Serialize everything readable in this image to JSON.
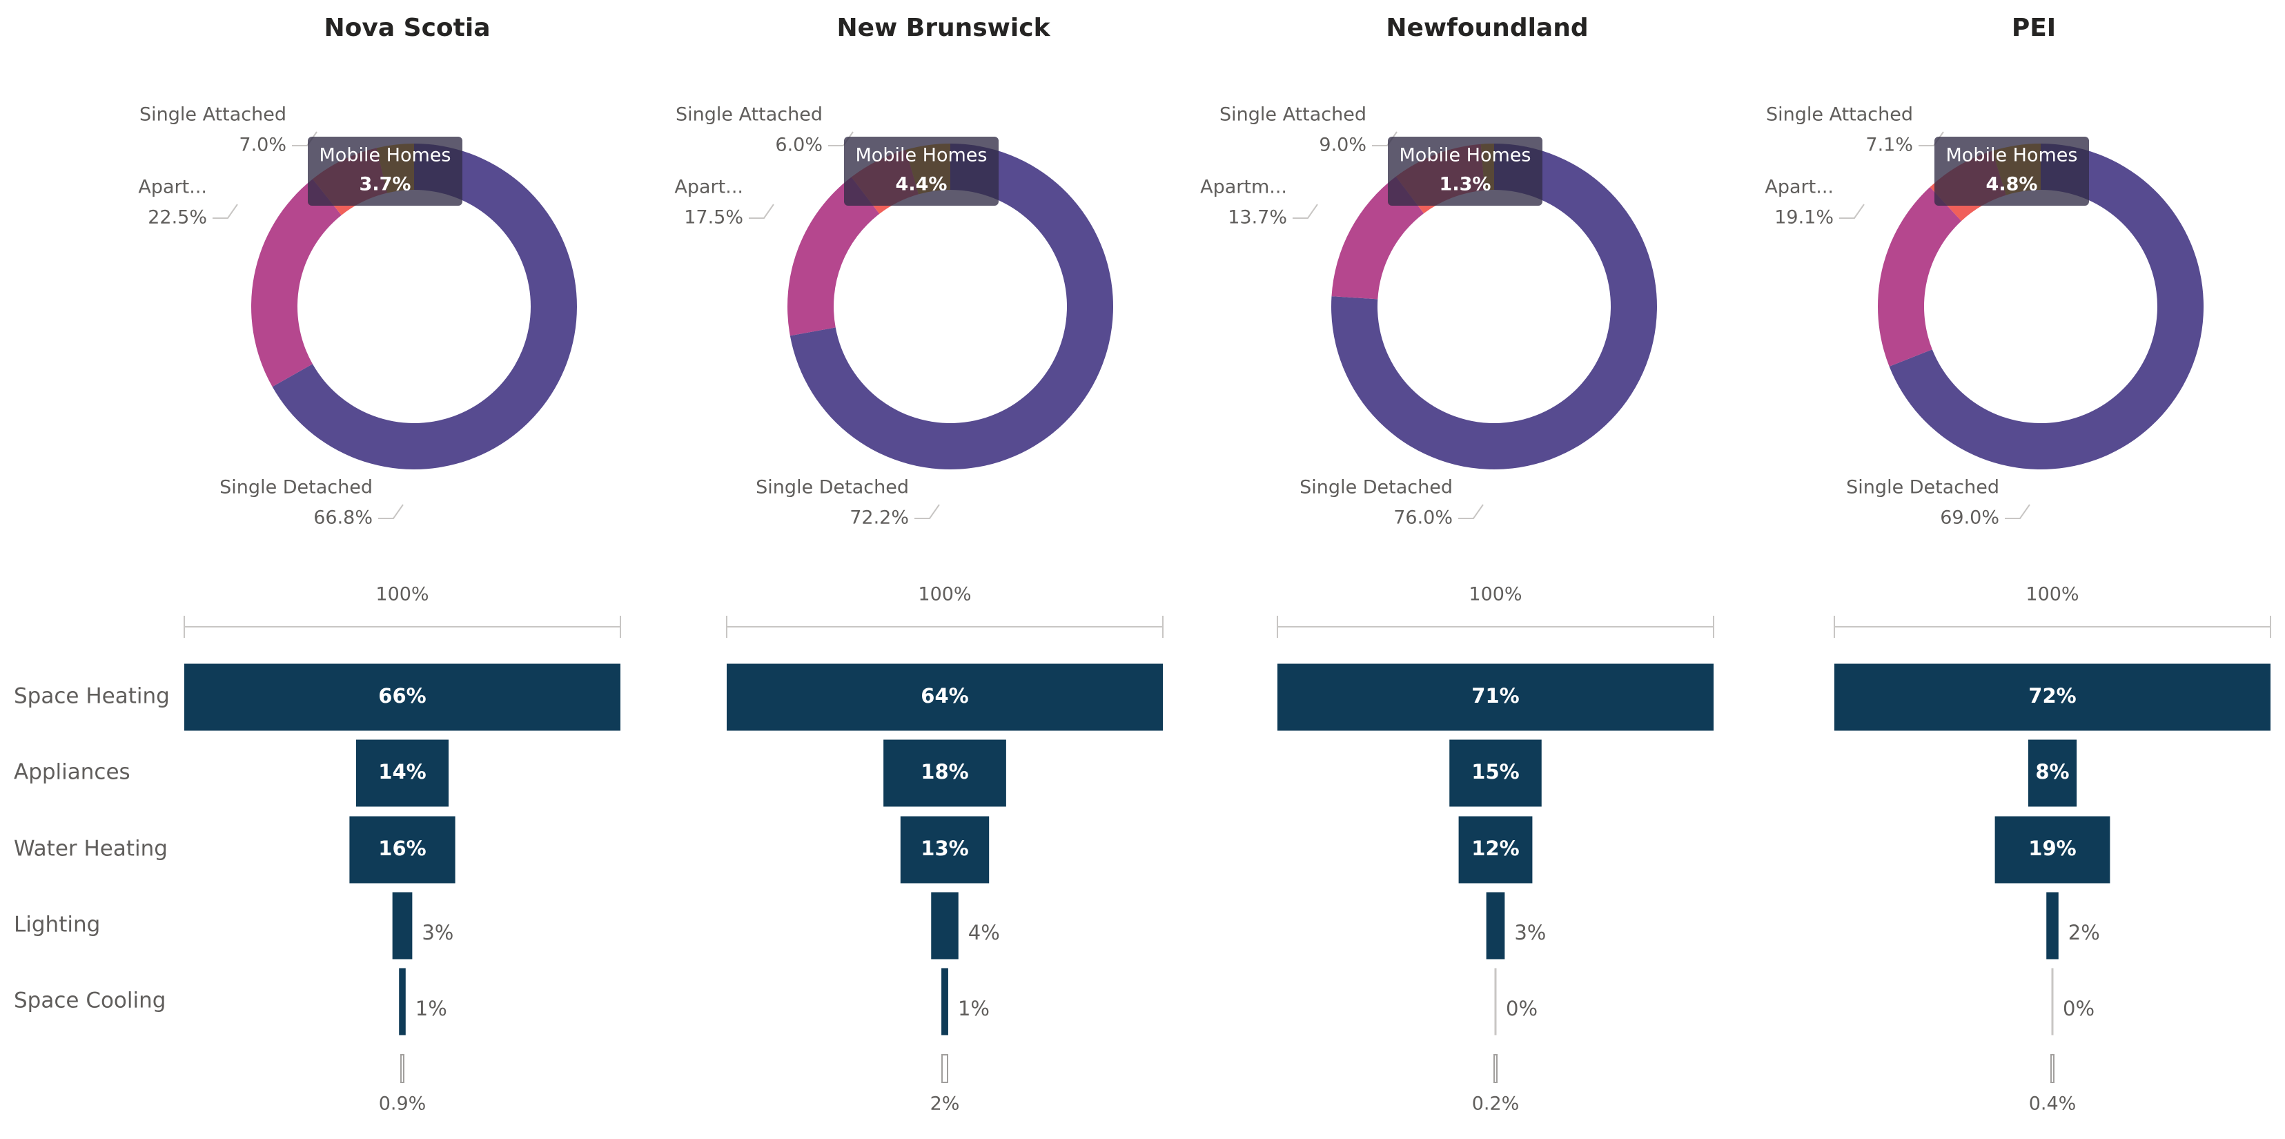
{
  "funnel_categories": [
    "Space Heating",
    "Appliances",
    "Water Heating",
    "Lighting",
    "Space Cooling"
  ],
  "chart_data": [
    {
      "type": "donut",
      "title": "Nova Scotia",
      "categories": [
        "Single Detached",
        "Apart...",
        "Single Attached",
        "Mobile Homes"
      ],
      "values": [
        66.8,
        22.5,
        7.0,
        3.7
      ],
      "value_labels": [
        "66.8%",
        "22.5%",
        "7.0%",
        "3.7%"
      ],
      "colors": [
        "#574b90",
        "#b5478e",
        "#f0605a",
        "#e0a800"
      ]
    },
    {
      "type": "funnel",
      "values": [
        66,
        14,
        16,
        3,
        1
      ],
      "value_labels": [
        "66%",
        "14%",
        "16%",
        "3%",
        "1%"
      ],
      "first_percent": {
        "value": 100,
        "label": "100%"
      },
      "last_percent": {
        "value": 0.9,
        "label": "0.9%"
      },
      "color": "#0f3b57"
    },
    {
      "type": "donut",
      "title": "New Brunswick",
      "categories": [
        "Single Detached",
        "Apart...",
        "Single Attached",
        "Mobile Homes"
      ],
      "values": [
        72.2,
        17.5,
        6.0,
        4.4
      ],
      "value_labels": [
        "72.2%",
        "17.5%",
        "6.0%",
        "4.4%"
      ],
      "colors": [
        "#574b90",
        "#b5478e",
        "#f0605a",
        "#e0a800"
      ]
    },
    {
      "type": "funnel",
      "values": [
        64,
        18,
        13,
        4,
        1
      ],
      "value_labels": [
        "64%",
        "18%",
        "13%",
        "4%",
        "1%"
      ],
      "first_percent": {
        "value": 100,
        "label": "100%"
      },
      "last_percent": {
        "value": 2,
        "label": "2%"
      },
      "color": "#0f3b57"
    },
    {
      "type": "donut",
      "title": "Newfoundland",
      "categories": [
        "Single Detached",
        "Apartm...",
        "Single Attached",
        "Mobile Homes"
      ],
      "values": [
        76.0,
        13.7,
        9.0,
        1.3
      ],
      "value_labels": [
        "76.0%",
        "13.7%",
        "9.0%",
        "1.3%"
      ],
      "colors": [
        "#574b90",
        "#b5478e",
        "#f0605a",
        "#e0a800"
      ]
    },
    {
      "type": "funnel",
      "values": [
        71,
        15,
        12,
        3,
        0
      ],
      "value_labels": [
        "71%",
        "15%",
        "12%",
        "3%",
        "0%"
      ],
      "first_percent": {
        "value": 100,
        "label": "100%"
      },
      "last_percent": {
        "value": 0.2,
        "label": "0.2%"
      },
      "color": "#0f3b57"
    },
    {
      "type": "donut",
      "title": "PEI",
      "categories": [
        "Single Detached",
        "Apart...",
        "Single Attached",
        "Mobile Homes"
      ],
      "values": [
        69.0,
        19.1,
        7.1,
        4.8
      ],
      "value_labels": [
        "69.0%",
        "19.1%",
        "7.1%",
        "4.8%"
      ],
      "colors": [
        "#574b90",
        "#b5478e",
        "#f0605a",
        "#e0a800"
      ]
    },
    {
      "type": "funnel",
      "values": [
        72,
        8,
        19,
        2,
        0
      ],
      "value_labels": [
        "72%",
        "8%",
        "19%",
        "2%",
        "0%"
      ],
      "first_percent": {
        "value": 100,
        "label": "100%"
      },
      "last_percent": {
        "value": 0.4,
        "label": "0.4%"
      },
      "color": "#0f3b57"
    }
  ]
}
